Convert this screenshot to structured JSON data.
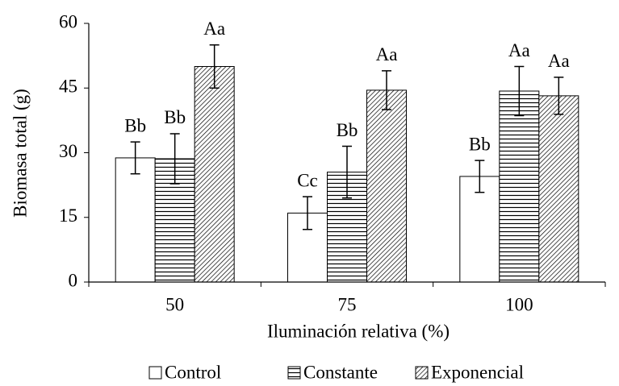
{
  "chart_data": {
    "type": "bar",
    "x_label": "Iluminación relativa (%)",
    "y_label": "Biomasa total (g)",
    "categories": [
      "50",
      "75",
      "100"
    ],
    "series": [
      {
        "name": "Control",
        "color": "#ffffff",
        "pattern": "none",
        "values": [
          28.8,
          16,
          24.5
        ],
        "errors": [
          3.7,
          3.8,
          3.7
        ],
        "letters": [
          "Bb",
          "Cc",
          "Bb"
        ]
      },
      {
        "name": "Constante",
        "color": "#ffffff",
        "pattern": "horizontal",
        "values": [
          28.6,
          25.5,
          44.3
        ],
        "errors": [
          5.8,
          6,
          5.7
        ],
        "letters": [
          "Bb",
          "Bb",
          "Aa"
        ]
      },
      {
        "name": "Exponencial",
        "color": "#ffffff",
        "pattern": "diagonal",
        "values": [
          50,
          44.5,
          43.2
        ],
        "errors": [
          5,
          4.5,
          4.3
        ],
        "letters": [
          "Aa",
          "Aa",
          "Aa"
        ]
      }
    ],
    "ylim": [
      0,
      60
    ],
    "yticks": [
      0,
      15,
      30,
      45,
      60
    ],
    "grid": false,
    "legend": "bottom"
  }
}
